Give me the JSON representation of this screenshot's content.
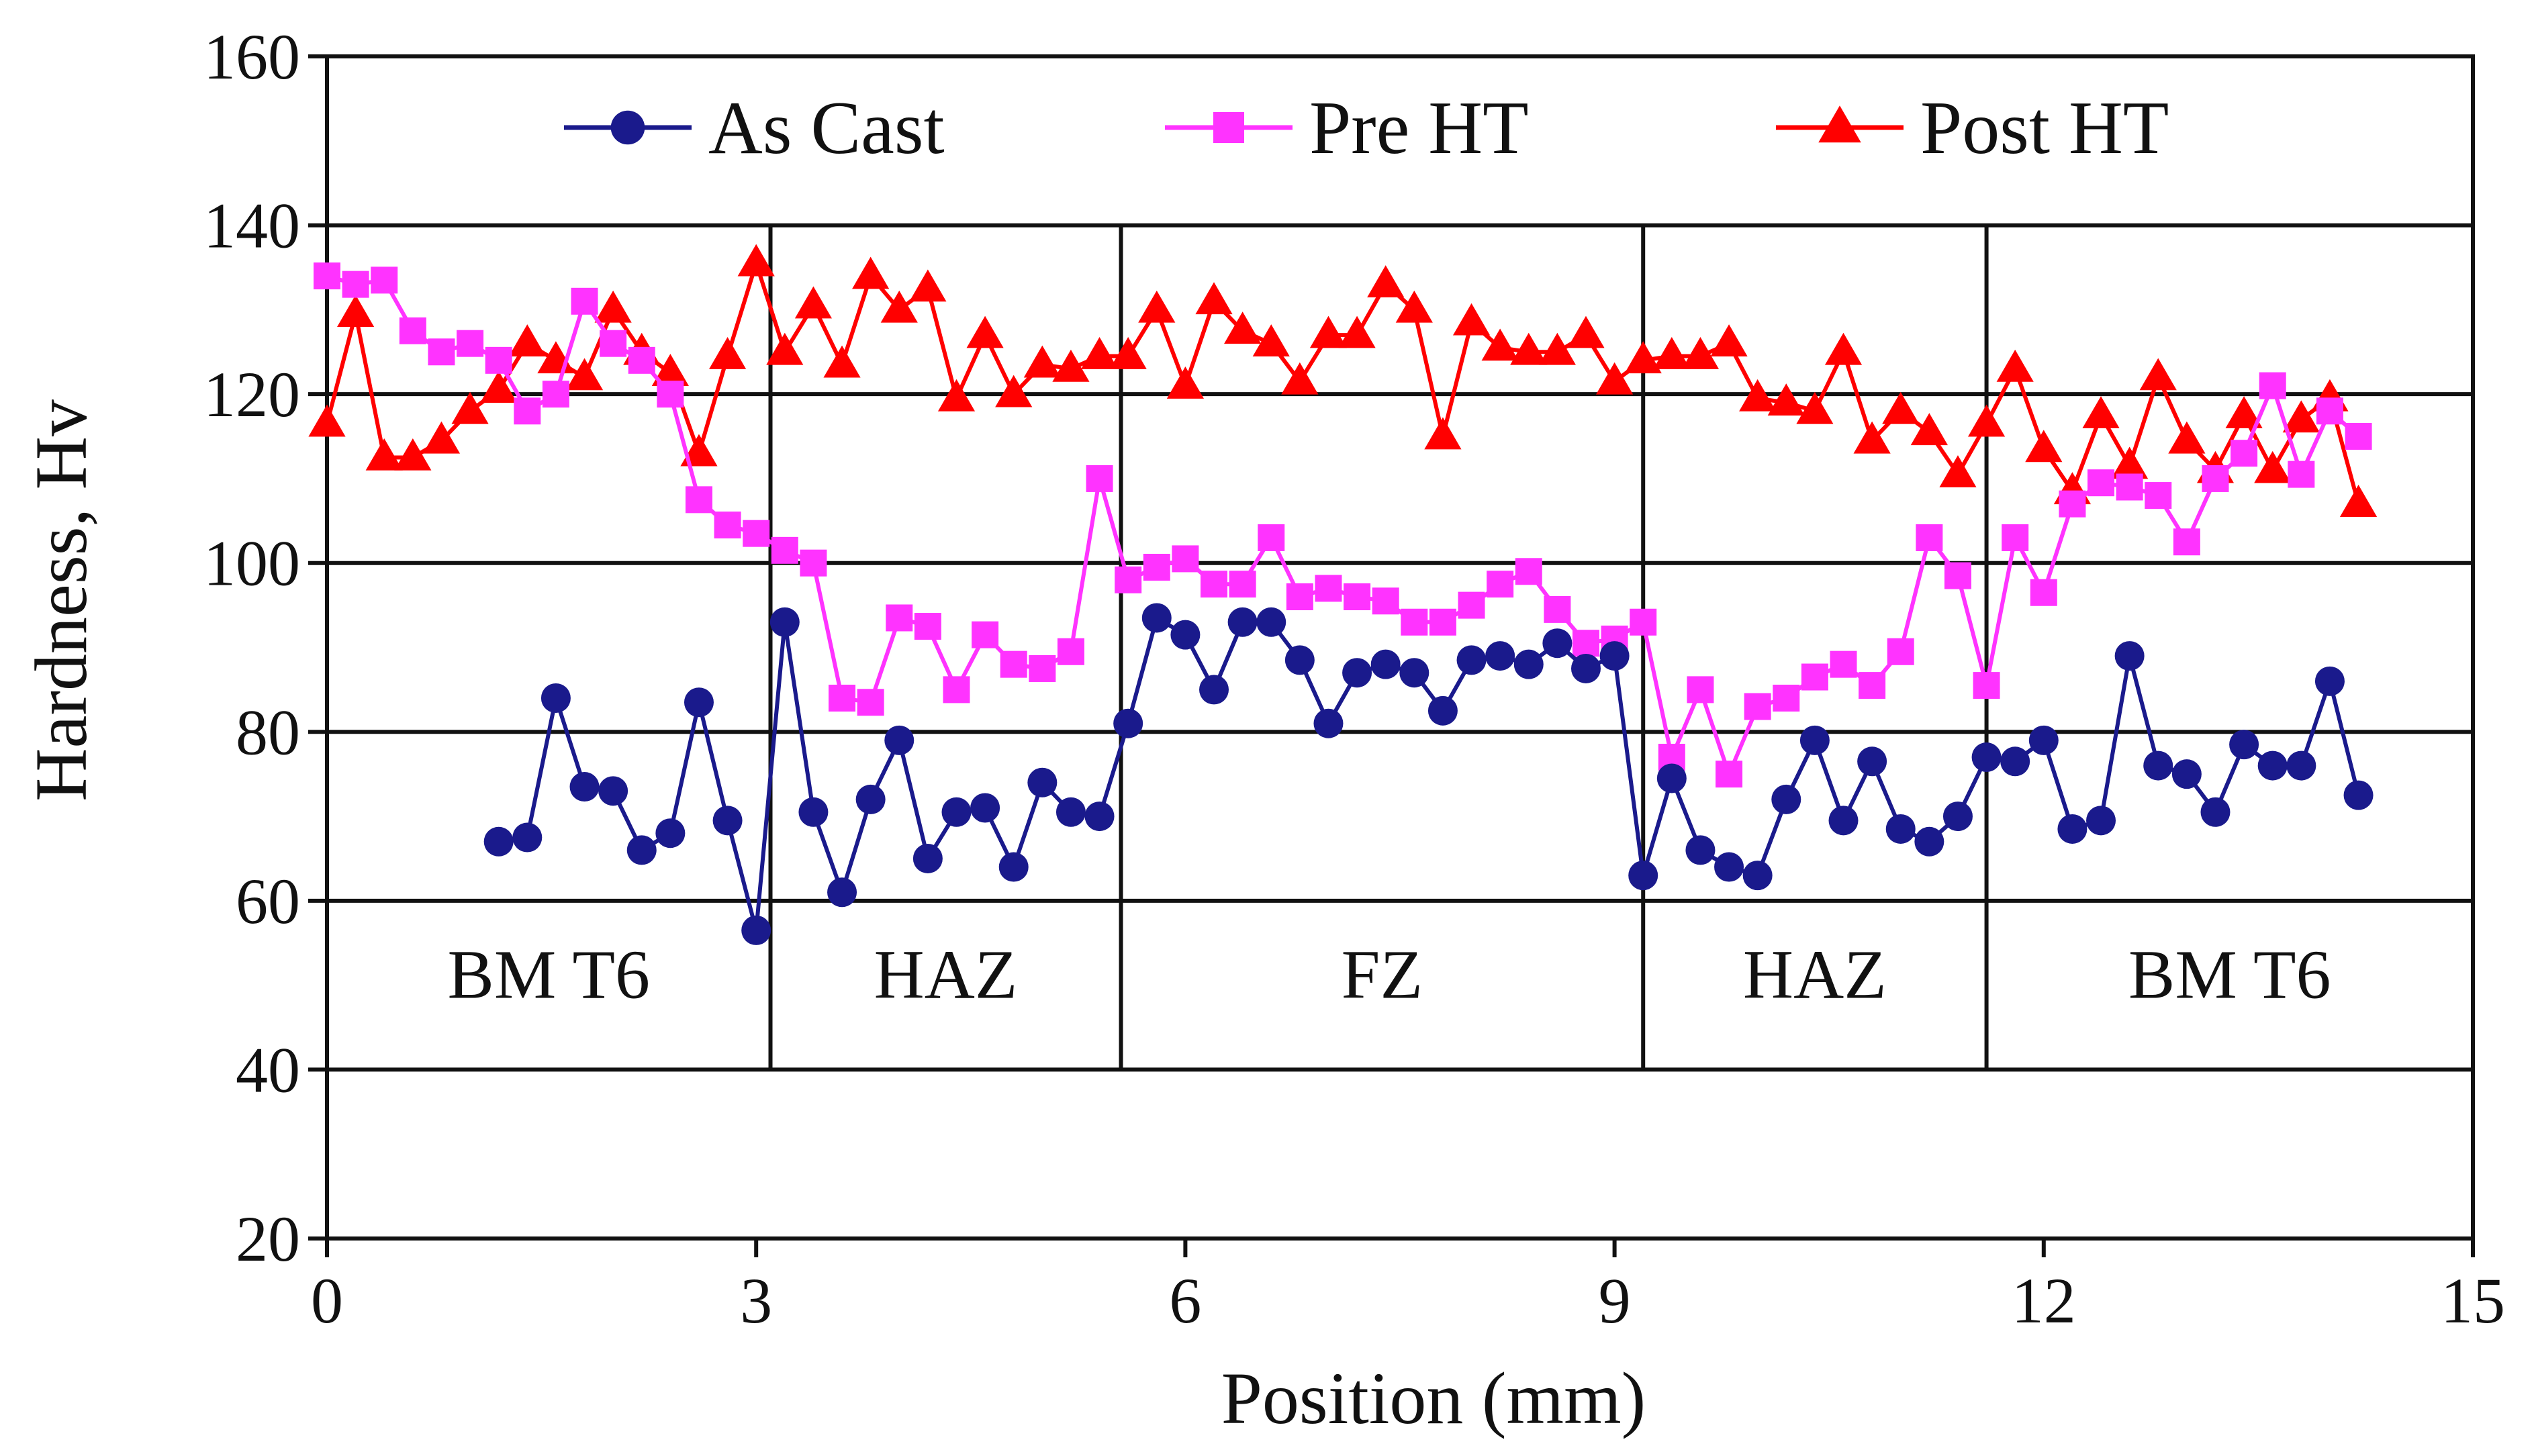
{
  "chart_data": {
    "type": "line",
    "title": "",
    "xlabel": "Position (mm)",
    "ylabel": "Hardness, Hv",
    "xlim": [
      0,
      15
    ],
    "ylim": [
      20,
      160
    ],
    "xticks": [
      0,
      3,
      6,
      9,
      12,
      15
    ],
    "yticks": [
      20,
      40,
      60,
      80,
      100,
      120,
      140,
      160
    ],
    "grid": "horizontal",
    "legend_position": "top",
    "zones": [
      {
        "label": "BM T6",
        "start": 0,
        "end": 3.1
      },
      {
        "label": "HAZ",
        "start": 3.1,
        "end": 5.55
      },
      {
        "label": "FZ",
        "start": 5.55,
        "end": 9.2
      },
      {
        "label": "HAZ",
        "start": 9.2,
        "end": 11.6
      },
      {
        "label": "BM T6",
        "start": 11.6,
        "end": 15
      }
    ],
    "zone_divider_range": [
      40,
      140
    ],
    "series": [
      {
        "name": "As Cast",
        "color": "#1a1a8c",
        "marker": "circle",
        "points": [
          [
            1.2,
            67
          ],
          [
            1.4,
            67.5
          ],
          [
            1.6,
            84
          ],
          [
            1.8,
            73.5
          ],
          [
            2.0,
            73
          ],
          [
            2.2,
            66
          ],
          [
            2.4,
            68
          ],
          [
            2.6,
            83.5
          ],
          [
            2.8,
            69.5
          ],
          [
            3.0,
            56.5
          ],
          [
            3.2,
            93
          ],
          [
            3.4,
            70.5
          ],
          [
            3.6,
            61
          ],
          [
            3.8,
            72
          ],
          [
            4.0,
            79
          ],
          [
            4.2,
            65
          ],
          [
            4.4,
            70.5
          ],
          [
            4.6,
            71
          ],
          [
            4.8,
            64
          ],
          [
            5.0,
            74
          ],
          [
            5.2,
            70.5
          ],
          [
            5.4,
            70
          ],
          [
            5.6,
            81
          ],
          [
            5.8,
            93.5
          ],
          [
            6.0,
            91.5
          ],
          [
            6.2,
            85
          ],
          [
            6.4,
            93
          ],
          [
            6.6,
            93
          ],
          [
            6.8,
            88.5
          ],
          [
            7.0,
            81
          ],
          [
            7.2,
            87
          ],
          [
            7.4,
            88
          ],
          [
            7.6,
            87
          ],
          [
            7.8,
            82.5
          ],
          [
            8.0,
            88.5
          ],
          [
            8.2,
            89
          ],
          [
            8.4,
            88
          ],
          [
            8.6,
            90.5
          ],
          [
            8.8,
            87.5
          ],
          [
            9.0,
            89
          ],
          [
            9.2,
            63
          ],
          [
            9.4,
            74.5
          ],
          [
            9.6,
            66
          ],
          [
            9.8,
            64
          ],
          [
            10.0,
            63
          ],
          [
            10.2,
            72
          ],
          [
            10.4,
            79
          ],
          [
            10.6,
            69.5
          ],
          [
            10.8,
            76.5
          ],
          [
            11.0,
            68.5
          ],
          [
            11.2,
            67
          ],
          [
            11.4,
            70
          ],
          [
            11.6,
            77
          ],
          [
            11.8,
            76.5
          ],
          [
            12.0,
            79
          ],
          [
            12.2,
            68.5
          ],
          [
            12.4,
            69.5
          ],
          [
            12.6,
            89
          ],
          [
            12.8,
            76
          ],
          [
            13.0,
            75
          ],
          [
            13.2,
            70.5
          ],
          [
            13.4,
            78.5
          ],
          [
            13.6,
            76
          ],
          [
            13.8,
            76
          ],
          [
            14.0,
            86
          ],
          [
            14.2,
            72.5
          ]
        ]
      },
      {
        "name": "Pre HT",
        "color": "#ff33ff",
        "marker": "square",
        "points": [
          [
            0.0,
            134
          ],
          [
            0.2,
            133
          ],
          [
            0.4,
            133.5
          ],
          [
            0.6,
            127.5
          ],
          [
            0.8,
            125
          ],
          [
            1.0,
            126
          ],
          [
            1.2,
            124
          ],
          [
            1.4,
            118
          ],
          [
            1.6,
            120
          ],
          [
            1.8,
            131
          ],
          [
            2.0,
            126
          ],
          [
            2.2,
            124
          ],
          [
            2.4,
            120
          ],
          [
            2.6,
            107.5
          ],
          [
            2.8,
            104.5
          ],
          [
            3.0,
            103.5
          ],
          [
            3.2,
            101.5
          ],
          [
            3.4,
            100
          ],
          [
            3.6,
            84
          ],
          [
            3.8,
            83.5
          ],
          [
            4.0,
            93.5
          ],
          [
            4.2,
            92.5
          ],
          [
            4.4,
            85
          ],
          [
            4.6,
            91.5
          ],
          [
            4.8,
            88
          ],
          [
            5.0,
            87.5
          ],
          [
            5.2,
            89.5
          ],
          [
            5.4,
            110
          ],
          [
            5.6,
            98
          ],
          [
            5.8,
            99.5
          ],
          [
            6.0,
            100.5
          ],
          [
            6.2,
            97.5
          ],
          [
            6.4,
            97.5
          ],
          [
            6.6,
            103
          ],
          [
            6.8,
            96
          ],
          [
            7.0,
            97
          ],
          [
            7.2,
            96
          ],
          [
            7.4,
            95.5
          ],
          [
            7.6,
            93
          ],
          [
            7.8,
            93
          ],
          [
            8.0,
            95
          ],
          [
            8.2,
            97.5
          ],
          [
            8.4,
            99
          ],
          [
            8.6,
            94.5
          ],
          [
            8.8,
            90.5
          ],
          [
            9.0,
            91
          ],
          [
            9.2,
            93
          ],
          [
            9.4,
            77
          ],
          [
            9.6,
            85
          ],
          [
            9.8,
            75
          ],
          [
            10.0,
            83
          ],
          [
            10.2,
            84
          ],
          [
            10.4,
            86.5
          ],
          [
            10.6,
            88
          ],
          [
            10.8,
            85.5
          ],
          [
            11.0,
            89.5
          ],
          [
            11.2,
            103
          ],
          [
            11.4,
            98.5
          ],
          [
            11.6,
            85.5
          ],
          [
            11.8,
            103
          ],
          [
            12.0,
            96.5
          ],
          [
            12.2,
            107
          ],
          [
            12.4,
            109.5
          ],
          [
            12.6,
            109
          ],
          [
            12.8,
            108
          ],
          [
            13.0,
            102.5
          ],
          [
            13.2,
            110
          ],
          [
            13.4,
            113
          ],
          [
            13.6,
            121
          ],
          [
            13.8,
            110.5
          ],
          [
            14.0,
            118
          ],
          [
            14.2,
            115
          ]
        ]
      },
      {
        "name": "Post HT",
        "color": "#ff0000",
        "marker": "triangle",
        "points": [
          [
            0.0,
            116.5
          ],
          [
            0.2,
            129.5
          ],
          [
            0.4,
            112.5
          ],
          [
            0.6,
            112.5
          ],
          [
            0.8,
            114.5
          ],
          [
            1.0,
            118
          ],
          [
            1.2,
            120.5
          ],
          [
            1.4,
            126
          ],
          [
            1.6,
            124
          ],
          [
            1.8,
            122
          ],
          [
            2.0,
            130
          ],
          [
            2.2,
            125
          ],
          [
            2.4,
            122.5
          ],
          [
            2.6,
            113
          ],
          [
            2.8,
            124.5
          ],
          [
            3.0,
            135.5
          ],
          [
            3.2,
            125
          ],
          [
            3.4,
            130.5
          ],
          [
            3.6,
            123.5
          ],
          [
            3.8,
            134
          ],
          [
            4.0,
            130
          ],
          [
            4.2,
            132.5
          ],
          [
            4.4,
            119.5
          ],
          [
            4.6,
            127
          ],
          [
            4.8,
            120
          ],
          [
            5.0,
            123.5
          ],
          [
            5.2,
            123
          ],
          [
            5.4,
            124.5
          ],
          [
            5.6,
            124.5
          ],
          [
            5.8,
            130
          ],
          [
            6.0,
            121
          ],
          [
            6.2,
            131
          ],
          [
            6.4,
            127.5
          ],
          [
            6.6,
            126
          ],
          [
            6.8,
            121.5
          ],
          [
            7.0,
            127
          ],
          [
            7.2,
            127
          ],
          [
            7.4,
            133
          ],
          [
            7.6,
            130
          ],
          [
            7.8,
            115
          ],
          [
            8.0,
            128.5
          ],
          [
            8.2,
            125.5
          ],
          [
            8.4,
            125
          ],
          [
            8.6,
            125
          ],
          [
            8.8,
            127
          ],
          [
            9.0,
            121.5
          ],
          [
            9.2,
            124
          ],
          [
            9.4,
            124.5
          ],
          [
            9.6,
            124.5
          ],
          [
            9.8,
            126
          ],
          [
            10.0,
            119.5
          ],
          [
            10.2,
            119
          ],
          [
            10.4,
            118
          ],
          [
            10.6,
            125
          ],
          [
            10.8,
            114.5
          ],
          [
            11.0,
            118
          ],
          [
            11.2,
            115.5
          ],
          [
            11.4,
            110.5
          ],
          [
            11.6,
            116.5
          ],
          [
            11.8,
            123
          ],
          [
            12.0,
            113.5
          ],
          [
            12.2,
            108.5
          ],
          [
            12.4,
            117.5
          ],
          [
            12.6,
            111.5
          ],
          [
            12.8,
            122
          ],
          [
            13.0,
            114.5
          ],
          [
            13.2,
            111
          ],
          [
            13.4,
            117.5
          ],
          [
            13.6,
            111
          ],
          [
            13.8,
            117
          ],
          [
            14.0,
            119.5
          ],
          [
            14.2,
            107
          ]
        ]
      }
    ]
  }
}
